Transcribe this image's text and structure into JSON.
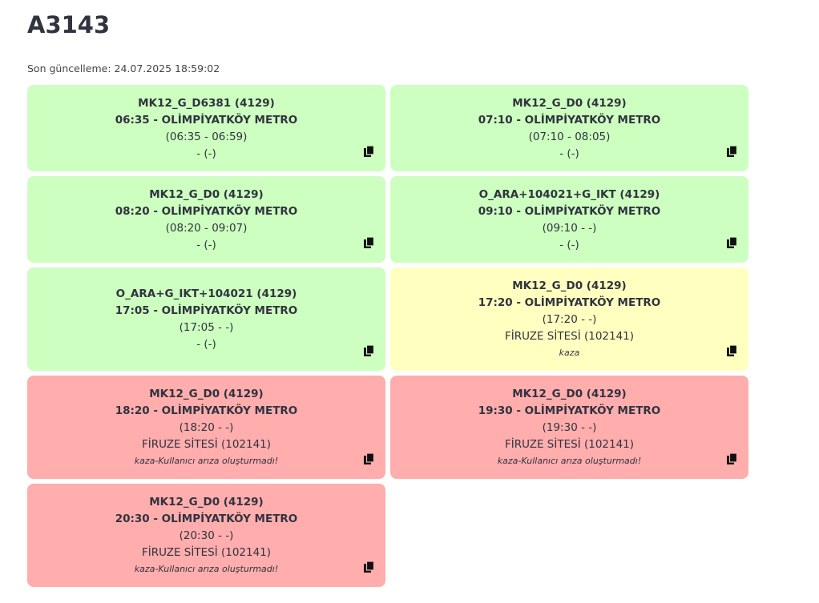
{
  "header": {
    "title": "A3143",
    "updated_label": "Son güncelleme: 24.07.2025 18:59:02"
  },
  "cards": [
    {
      "status": "green",
      "code": "MK12_G_D6381 (4129)",
      "route": "06:35 - OLİMPİYATKÖY METRO",
      "time": "(06:35 - 06:59)",
      "place": "- (-)",
      "note": ""
    },
    {
      "status": "green",
      "code": "MK12_G_D0 (4129)",
      "route": "07:10 - OLİMPİYATKÖY METRO",
      "time": "(07:10 - 08:05)",
      "place": "- (-)",
      "note": ""
    },
    {
      "status": "green",
      "code": "MK12_G_D0 (4129)",
      "route": "08:20 - OLİMPİYATKÖY METRO",
      "time": "(08:20 - 09:07)",
      "place": "- (-)",
      "note": ""
    },
    {
      "status": "green",
      "code": "O_ARA+104021+G_IKT (4129)",
      "route": "09:10 - OLİMPİYATKÖY METRO",
      "time": "(09:10 - -)",
      "place": "- (-)",
      "note": ""
    },
    {
      "status": "green",
      "code": "O_ARA+G_IKT+104021 (4129)",
      "route": "17:05 - OLİMPİYATKÖY METRO",
      "time": "(17:05 - -)",
      "place": "- (-)",
      "note": ""
    },
    {
      "status": "yellow",
      "code": "MK12_G_D0 (4129)",
      "route": "17:20 - OLİMPİYATKÖY METRO",
      "time": "(17:20 - -)",
      "place": "FİRUZE SİTESİ (102141)",
      "note": "kaza"
    },
    {
      "status": "red",
      "code": "MK12_G_D0 (4129)",
      "route": "18:20 - OLİMPİYATKÖY METRO",
      "time": "(18:20 - -)",
      "place": "FİRUZE SİTESİ (102141)",
      "note": "kaza-Kullanıcı arıza oluşturmadı!"
    },
    {
      "status": "red",
      "code": "MK12_G_D0 (4129)",
      "route": "19:30 - OLİMPİYATKÖY METRO",
      "time": "(19:30 - -)",
      "place": "FİRUZE SİTESİ (102141)",
      "note": "kaza-Kullanıcı arıza oluşturmadı!"
    },
    {
      "status": "red",
      "code": "MK12_G_D0 (4129)",
      "route": "20:30 - OLİMPİYATKÖY METRO",
      "time": "(20:30 - -)",
      "place": "FİRUZE SİTESİ (102141)",
      "note": "kaza-Kullanıcı arıza oluşturmadı!"
    }
  ],
  "icons": {
    "copy": "copy-icon"
  },
  "colors": {
    "green": "#ccffc0",
    "yellow": "#ffffc0",
    "red": "#ffadad"
  }
}
